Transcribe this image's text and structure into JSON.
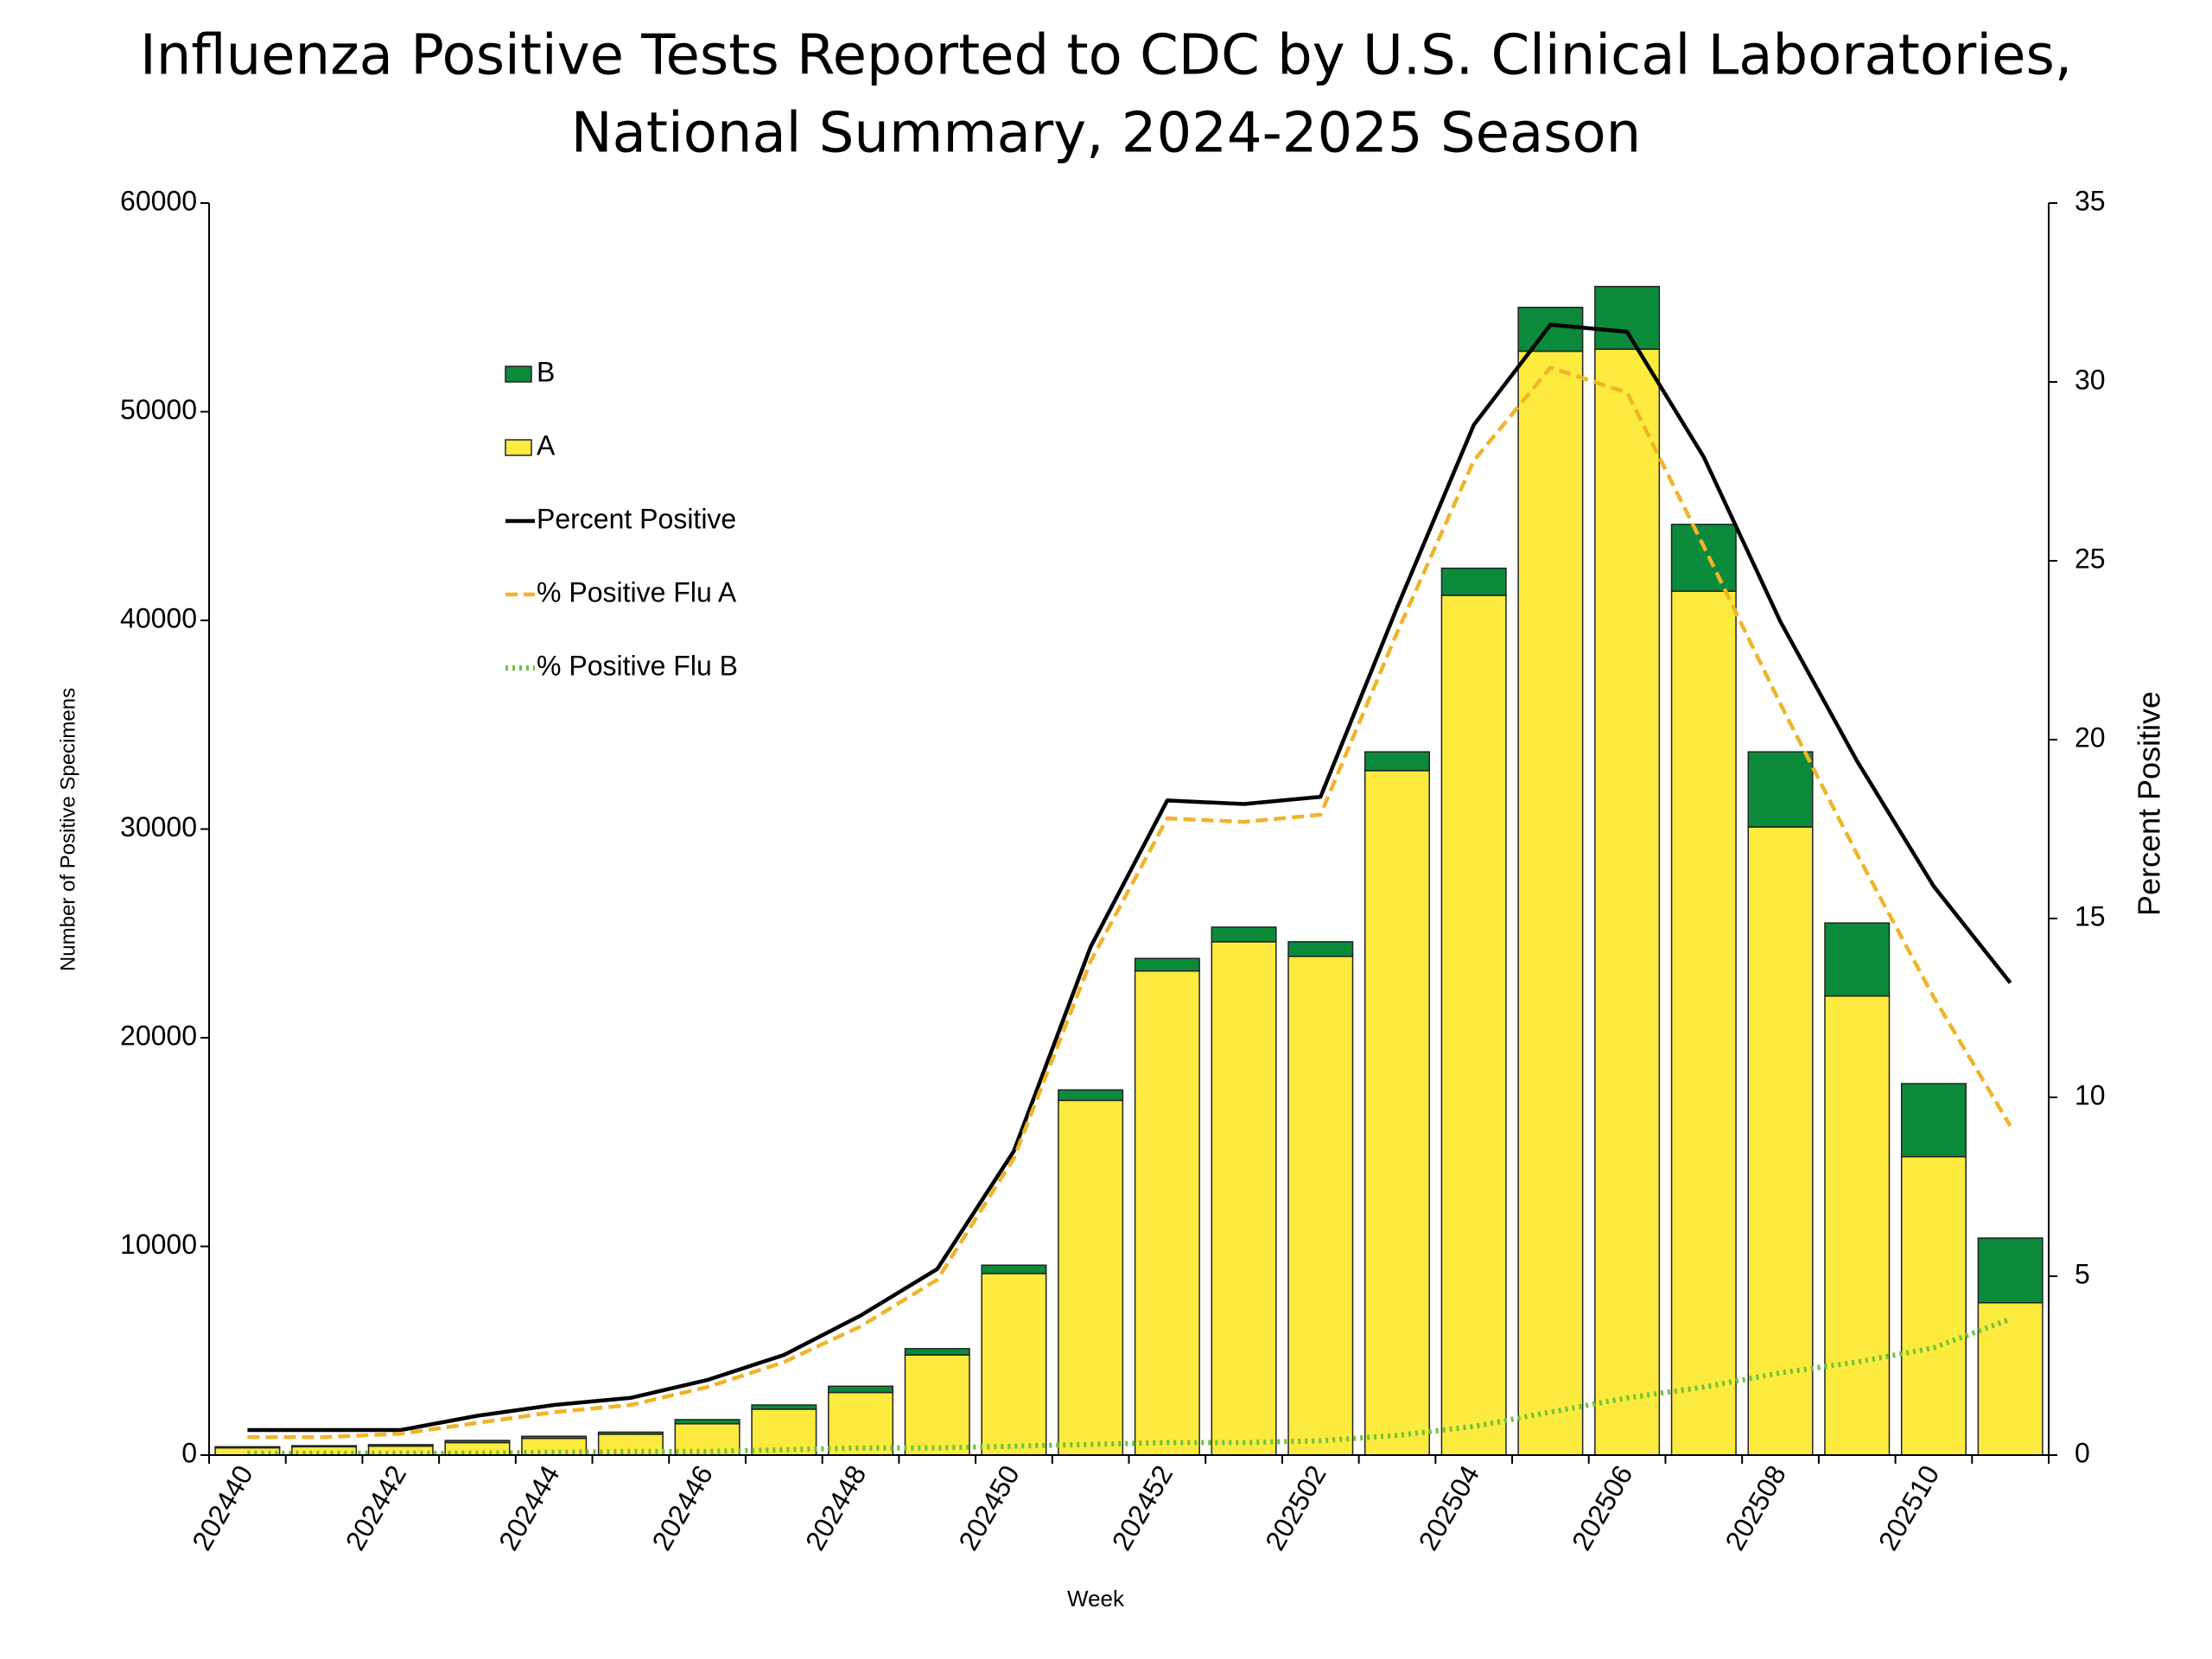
{
  "chart_data": {
    "type": "bar",
    "title": [
      "Influenza Positive Tests Reported to CDC by U.S. Clinical Laboratories,",
      "National Summary, 2024-2025 Season"
    ],
    "xlabel": "Week",
    "ylabel": "Number of Positive Specimens",
    "y2label": "Percent Positive",
    "categories": [
      "202440",
      null,
      "202442",
      null,
      "202444",
      null,
      "202446",
      null,
      "202448",
      null,
      "202450",
      null,
      "202452",
      null,
      "202502",
      null,
      "202504",
      null,
      "202506",
      null,
      "202508",
      null,
      "202510",
      null
    ],
    "series": [
      {
        "name": "B",
        "type": "bar",
        "color": "#0b8a3c",
        "values": [
          50,
          50,
          70,
          100,
          100,
          100,
          200,
          200,
          300,
          300,
          400,
          500,
          600,
          700,
          700,
          900,
          1300,
          2100,
          3000,
          3200,
          3600,
          3500,
          3500,
          3100
        ]
      },
      {
        "name": "A",
        "type": "bar",
        "color": "#fcea3f",
        "values": [
          350,
          400,
          430,
          600,
          800,
          1000,
          1500,
          2200,
          3000,
          4800,
          8700,
          17000,
          23200,
          24600,
          23900,
          32800,
          41200,
          52900,
          53000,
          41400,
          30100,
          22000,
          14300,
          7300
        ]
      },
      {
        "name": "Percent Positive",
        "type": "line",
        "axis": "y2",
        "dash": "solid",
        "color": "#000000",
        "values": [
          0.7,
          0.7,
          0.7,
          1.1,
          1.4,
          1.6,
          2.1,
          2.8,
          3.9,
          5.2,
          8.5,
          14.2,
          18.3,
          18.2,
          18.4,
          23.7,
          28.8,
          31.6,
          31.4,
          27.9,
          23.3,
          19.4,
          15.9,
          13.2
        ]
      },
      {
        "name": "% Positive Flu A",
        "type": "line",
        "axis": "y2",
        "dash": "dashed",
        "color": "#f0b429",
        "values": [
          0.5,
          0.5,
          0.6,
          0.9,
          1.2,
          1.4,
          1.9,
          2.6,
          3.6,
          4.9,
          8.3,
          13.8,
          17.8,
          17.7,
          17.9,
          23.0,
          27.8,
          30.4,
          29.7,
          25.4,
          21.0,
          16.8,
          12.8,
          9.2
        ]
      },
      {
        "name": "% Positive Flu B",
        "type": "line",
        "axis": "y2",
        "dash": "dotted",
        "color": "#6cc43a",
        "values": [
          0.05,
          0.05,
          0.05,
          0.05,
          0.08,
          0.1,
          0.1,
          0.15,
          0.2,
          0.2,
          0.25,
          0.3,
          0.35,
          0.35,
          0.4,
          0.55,
          0.8,
          1.2,
          1.6,
          1.9,
          2.3,
          2.6,
          3.0,
          3.8
        ]
      }
    ],
    "ylim": [
      0,
      60000
    ],
    "yticks": [
      0,
      10000,
      20000,
      30000,
      40000,
      50000,
      60000
    ],
    "y2lim": [
      0,
      35
    ],
    "y2ticks": [
      0,
      5,
      10,
      15,
      20,
      25,
      30,
      35
    ],
    "legend": "upper-left",
    "grid": false
  }
}
